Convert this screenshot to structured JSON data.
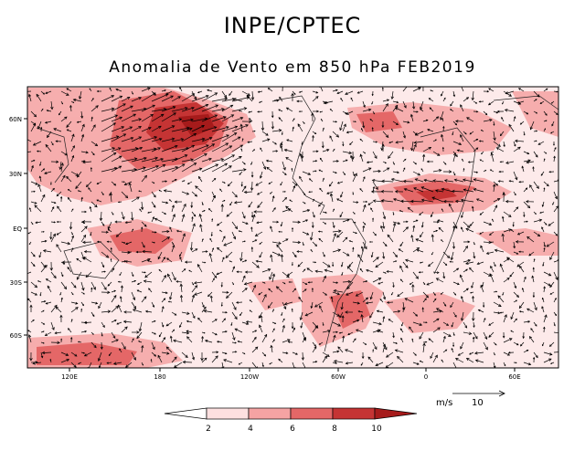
{
  "header": {
    "title": "INPE/CPTEC",
    "subtitle": "Anomalia de Vento em 850 hPa FEB2019"
  },
  "map": {
    "lon_labels": [
      "120E",
      "180",
      "120W",
      "60W",
      "0",
      "60E"
    ],
    "lat_labels": [
      "60N",
      "30N",
      "EQ",
      "30S",
      "60S"
    ],
    "shading_colors": [
      "#ffffff",
      "#fde0e0",
      "#f5a3a3",
      "#e46767",
      "#c53434",
      "#a61b1b"
    ]
  },
  "colorbar": {
    "levels": [
      "2",
      "4",
      "6",
      "8",
      "10"
    ]
  },
  "reference_vector": {
    "unit_label": "m/s",
    "value_label": "10"
  }
}
